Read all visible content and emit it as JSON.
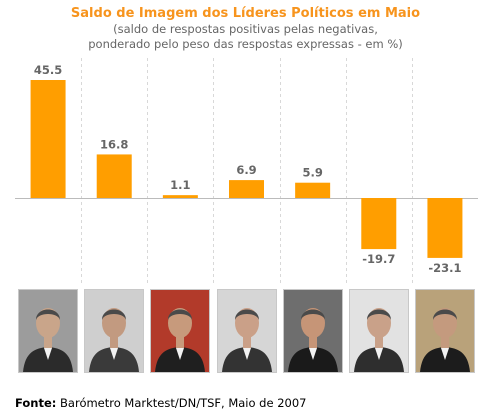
{
  "header": {
    "title": "Saldo de Imagem dos Líderes Políticos em Maio",
    "subtitle_line1": "(saldo de respostas positivas pelas negativas,",
    "subtitle_line2": "ponderado pelo peso das respostas expressas - em %)"
  },
  "colors": {
    "bar": "#ff9e00",
    "title": "#f7941d",
    "label": "#666666",
    "gridline": "#d8d8d8",
    "baseline": "#bbbbbb"
  },
  "chart_data": {
    "type": "bar",
    "categories": [
      "",
      "",
      "",
      "",
      "",
      "",
      ""
    ],
    "values": [
      45.5,
      16.8,
      1.1,
      6.9,
      5.9,
      -19.7,
      -23.1
    ],
    "value_labels": [
      "45.5",
      "16.8",
      "1.1",
      "6.9",
      "5.9",
      "-19.7",
      "-23.1"
    ],
    "title": "Saldo de Imagem dos Líderes Políticos em Maio",
    "xlabel": "",
    "ylabel": "",
    "ylim": [
      -30,
      50
    ],
    "grid": "vertical-dashed"
  },
  "photos": [
    {
      "icon": "portrait-photo",
      "bg": "#9c9c9c",
      "face": "#c9a58a",
      "suit": "#2b2b2b"
    },
    {
      "icon": "portrait-photo",
      "bg": "#cfcfcf",
      "face": "#c29a80",
      "suit": "#3a3a3a"
    },
    {
      "icon": "portrait-photo",
      "bg": "#b23a2a",
      "face": "#c79a7c",
      "suit": "#1f1f1f"
    },
    {
      "icon": "portrait-photo",
      "bg": "#d6d6d6",
      "face": "#caa088",
      "suit": "#333333"
    },
    {
      "icon": "portrait-photo",
      "bg": "#6e6e6e",
      "face": "#c69577",
      "suit": "#1a1a1a"
    },
    {
      "icon": "portrait-photo",
      "bg": "#e2e2e2",
      "face": "#c9a189",
      "suit": "#2e2e2e"
    },
    {
      "icon": "portrait-photo",
      "bg": "#b9a27a",
      "face": "#c49a7e",
      "suit": "#1c1c1c"
    }
  ],
  "footer": {
    "label": "Fonte:",
    "text": " Barómetro Marktest/DN/TSF, Maio de 2007"
  }
}
